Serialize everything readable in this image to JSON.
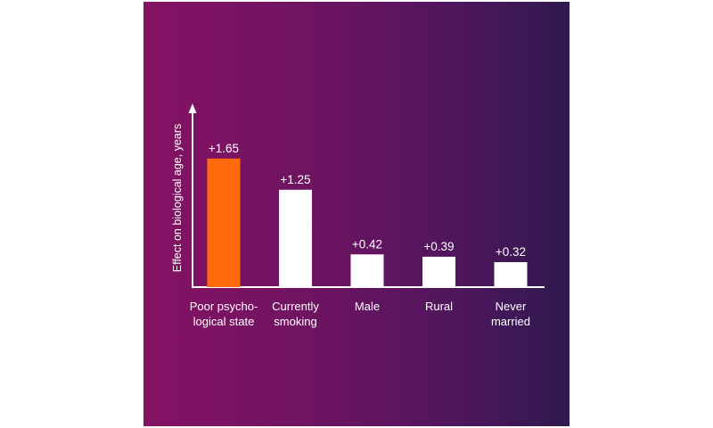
{
  "chart_data": {
    "type": "bar",
    "title": "",
    "ylabel": "Effect on biological age, years",
    "xlabel": "",
    "categories": [
      [
        "Poor psycho-",
        "logical state"
      ],
      [
        "Currently",
        "smoking"
      ],
      [
        "Male"
      ],
      [
        "Rural"
      ],
      [
        "Never",
        "married"
      ]
    ],
    "values": [
      1.65,
      1.25,
      0.42,
      0.39,
      0.32
    ],
    "data_labels": [
      "+1.65",
      "+1.25",
      "+0.42",
      "+0.39",
      "+0.32"
    ],
    "ylim": [
      0,
      1.9
    ],
    "grid": false,
    "legend": "none",
    "colors": {
      "highlight": "#ff6a0d",
      "default": "#ffffff",
      "axis": "#ffffff"
    },
    "highlight_index": 0
  }
}
